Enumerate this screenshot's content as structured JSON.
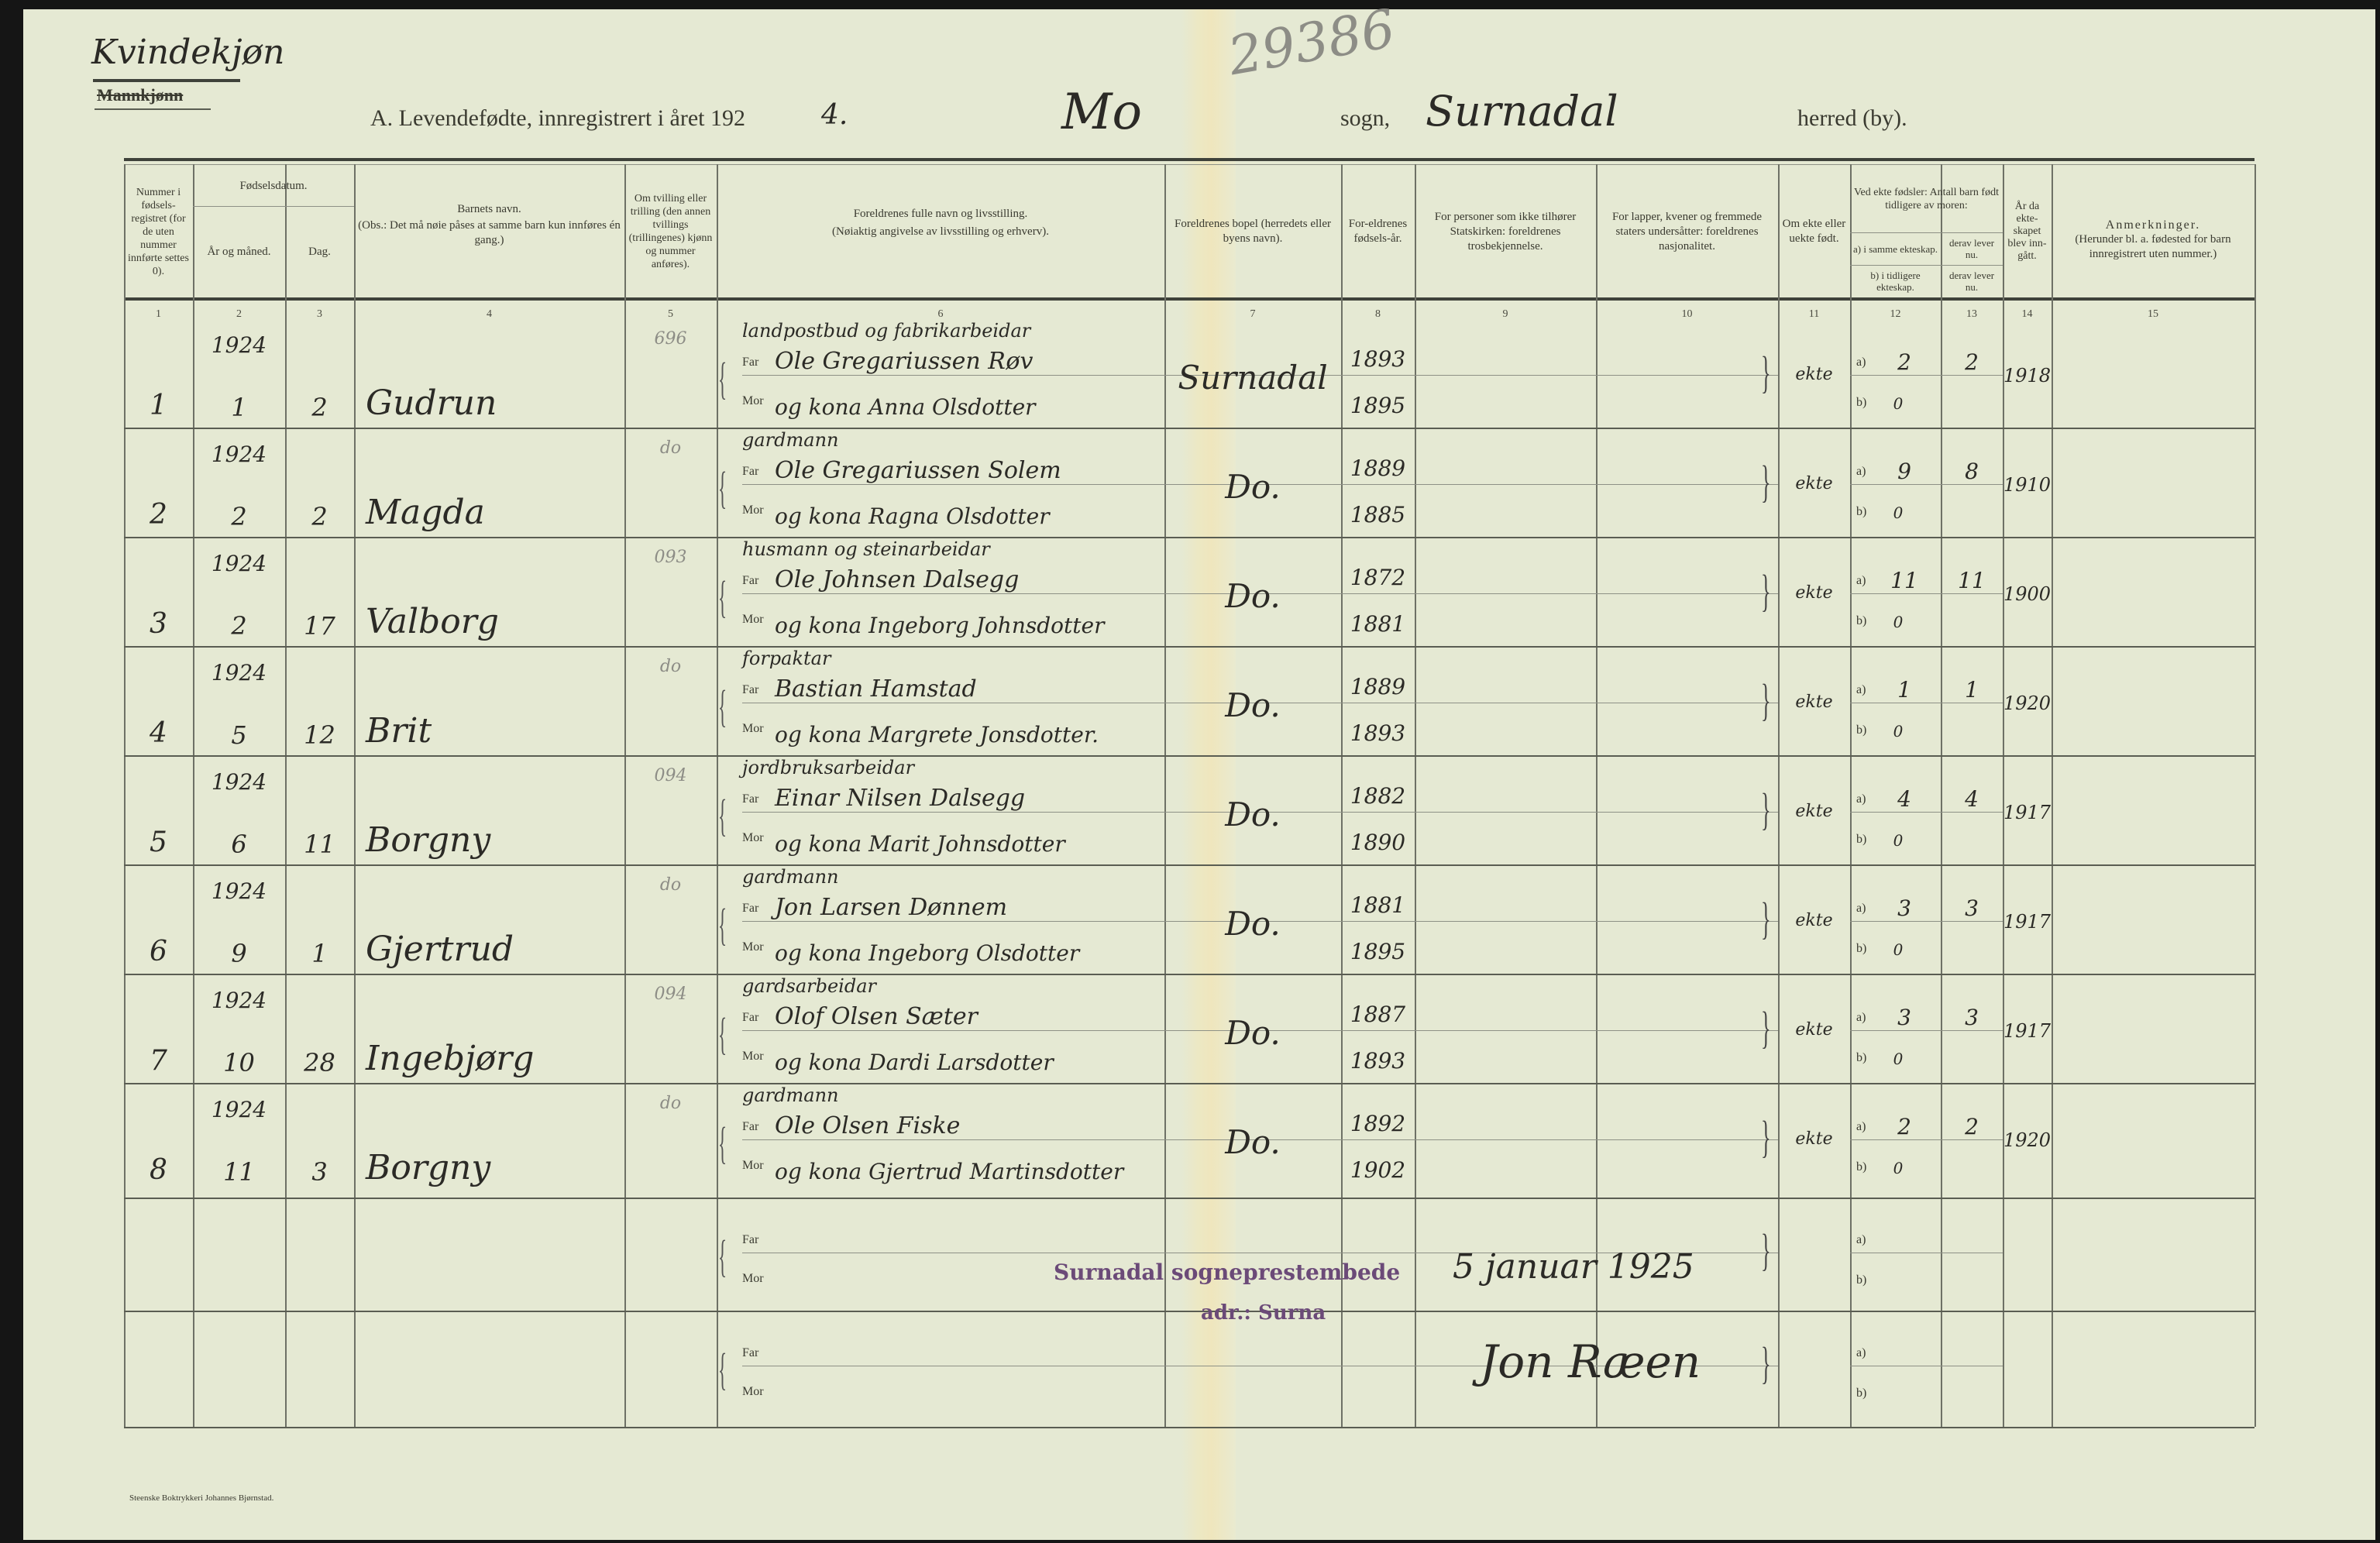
{
  "page": {
    "sex_heading": "Kvindekjøn",
    "sex_struck": "Mannkjønn",
    "archive_number": "29386",
    "title_prefix": "A.  Levendefødte, innregistrert i året 192",
    "title_year_digit": "4.",
    "parish": "Mo",
    "sogn_label": "sogn,",
    "municipality": "Surnadal",
    "herred_label": "herred (by).",
    "printer": "Steenske Boktrykkeri Johannes Bjørnstad."
  },
  "headers": {
    "col1": "Nummer i fødsels-registret (for de uten nummer innførte settes 0).",
    "col2_3": "Fødselsdatum.",
    "col2": "År og måned.",
    "col3": "Dag.",
    "col4_title": "Barnets navn.",
    "col4_note": "(Obs.: Det må nøie påses at samme barn kun innføres én gang.)",
    "col5": "Om tvilling eller trilling (den annen tvillings (trillingenes) kjønn og nummer anføres).",
    "col6_title": "Foreldrenes fulle navn og livsstilling.",
    "col6_note": "(Nøiaktig angivelse av livsstilling og erhverv).",
    "col7": "Foreldrenes bopel (herredets eller byens navn).",
    "col8": "For-eldrenes fødsels-år.",
    "col9": "For personer som ikke tilhører Statskirken: foreldrenes trosbekjennelse.",
    "col10": "For lapper, kvener og fremmede staters undersåtter: foreldrenes nasjonalitet.",
    "col11": "Om ekte eller uekte født.",
    "col12_13": "Ved ekte fødsler: Antall barn født tidligere av moren:",
    "col12a": "a) i samme ekteskap.",
    "col12b": "b) i tidligere ekteskap.",
    "col13a": "derav lever nu.",
    "col13b": "derav lever nu.",
    "col14": "År da ekte-skapet blev inn-gått.",
    "col15_title": "Anmerkninger.",
    "col15_note": "(Herunder bl. a. fødested for barn innregistrert uten nummer.)",
    "numbers": [
      "1",
      "2",
      "3",
      "4",
      "5",
      "6",
      "7",
      "8",
      "9",
      "10",
      "11",
      "12",
      "13",
      "14",
      "15"
    ]
  },
  "labels": {
    "far": "Far",
    "mor": "Mor",
    "a": "a)",
    "b": "b)",
    "brace": "}"
  },
  "rows": [
    {
      "nr": "1",
      "year": "1924",
      "month": "1",
      "day": "2",
      "name": "Gudrun",
      "twin": "696",
      "occupation": "landpostbud og fabrikarbeidar",
      "far": "Ole Gregariussen Røv",
      "mor": "og kona Anna Olsdotter",
      "bopel": "Surnadal",
      "far_year": "1893",
      "mor_year": "1895",
      "ekte": "ekte",
      "a": "2",
      "a_lever": "2",
      "b": "0",
      "married": "1918"
    },
    {
      "nr": "2",
      "year": "1924",
      "month": "2",
      "day": "2",
      "name": "Magda",
      "twin": "do",
      "occupation": "gardmann",
      "far": "Ole Gregariussen Solem",
      "mor": "og kona Ragna Olsdotter",
      "bopel": "Do.",
      "far_year": "1889",
      "mor_year": "1885",
      "ekte": "ekte",
      "a": "9",
      "a_lever": "8",
      "b": "0",
      "married": "1910"
    },
    {
      "nr": "3",
      "year": "1924",
      "month": "2",
      "day": "17",
      "name": "Valborg",
      "twin": "093",
      "occupation": "husmann og steinarbeidar",
      "far": "Ole Johnsen Dalsegg",
      "mor": "og kona Ingeborg Johnsdotter",
      "bopel": "Do.",
      "far_year": "1872",
      "mor_year": "1881",
      "ekte": "ekte",
      "a": "11",
      "a_lever": "11",
      "b": "0",
      "married": "1900"
    },
    {
      "nr": "4",
      "year": "1924",
      "month": "5",
      "day": "12",
      "name": "Brit",
      "twin": "do",
      "occupation": "forpaktar",
      "far": "Bastian Hamstad",
      "mor": "og kona Margrete Jonsdotter.",
      "bopel": "Do.",
      "far_year": "1889",
      "mor_year": "1893",
      "ekte": "ekte",
      "a": "1",
      "a_lever": "1",
      "b": "0",
      "married": "1920"
    },
    {
      "nr": "5",
      "year": "1924",
      "month": "6",
      "day": "11",
      "name": "Borgny",
      "twin": "094",
      "occupation": "jordbruksarbeidar",
      "far": "Einar Nilsen Dalsegg",
      "mor": "og kona Marit Johnsdotter",
      "bopel": "Do.",
      "far_year": "1882",
      "mor_year": "1890",
      "ekte": "ekte",
      "a": "4",
      "a_lever": "4",
      "b": "0",
      "married": "1917"
    },
    {
      "nr": "6",
      "year": "1924",
      "month": "9",
      "day": "1",
      "name": "Gjertrud",
      "twin": "do",
      "occupation": "gardmann",
      "far": "Jon Larsen Dønnem",
      "mor": "og kona Ingeborg Olsdotter",
      "bopel": "Do.",
      "far_year": "1881",
      "mor_year": "1895",
      "ekte": "ekte",
      "a": "3",
      "a_lever": "3",
      "b": "0",
      "married": "1917"
    },
    {
      "nr": "7",
      "year": "1924",
      "month": "10",
      "day": "28",
      "name": "Ingebjørg",
      "twin": "094",
      "occupation": "gardsarbeidar",
      "far": "Olof Olsen Sæter",
      "mor": "og kona Dardi Larsdotter",
      "bopel": "Do.",
      "far_year": "1887",
      "mor_year": "1893",
      "ekte": "ekte",
      "a": "3",
      "a_lever": "3",
      "b": "0",
      "married": "1917"
    },
    {
      "nr": "8",
      "year": "1924",
      "month": "11",
      "day": "3",
      "name": "Borgny",
      "twin": "do",
      "occupation": "gardmann",
      "far": "Ole Olsen Fiske",
      "mor": "og kona Gjertrud Martinsdotter",
      "bopel": "Do.",
      "far_year": "1892",
      "mor_year": "1902",
      "ekte": "ekte",
      "a": "2",
      "a_lever": "2",
      "b": "0",
      "married": "1920"
    }
  ],
  "closing": {
    "stamp_office": "Surnadal sogneprestembede",
    "stamp_address": "adr.: Surna",
    "date": "5 januar 1925",
    "signature": "Jon Ræen"
  },
  "colors": {
    "paper": "#e5e9d3",
    "stamp": "#6b4a78",
    "ink": "#2b2a26"
  }
}
